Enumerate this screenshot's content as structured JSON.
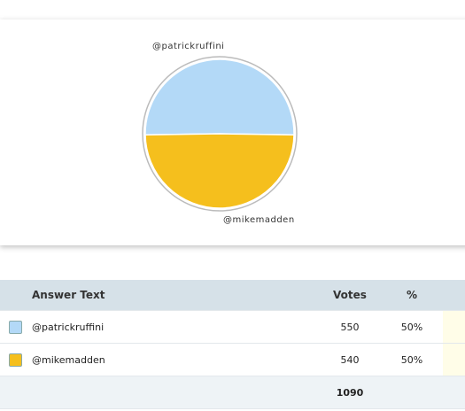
{
  "chart_data": {
    "type": "pie",
    "categories": [
      "@patrickruffini",
      "@mikemadden"
    ],
    "values": [
      550,
      540
    ],
    "colors": [
      "#b3d9f7",
      "#f5bf1d"
    ]
  },
  "table": {
    "header": [
      "Answer Text",
      "Votes",
      "%"
    ],
    "percents": [
      "50%",
      "50%"
    ],
    "total": 1090
  }
}
